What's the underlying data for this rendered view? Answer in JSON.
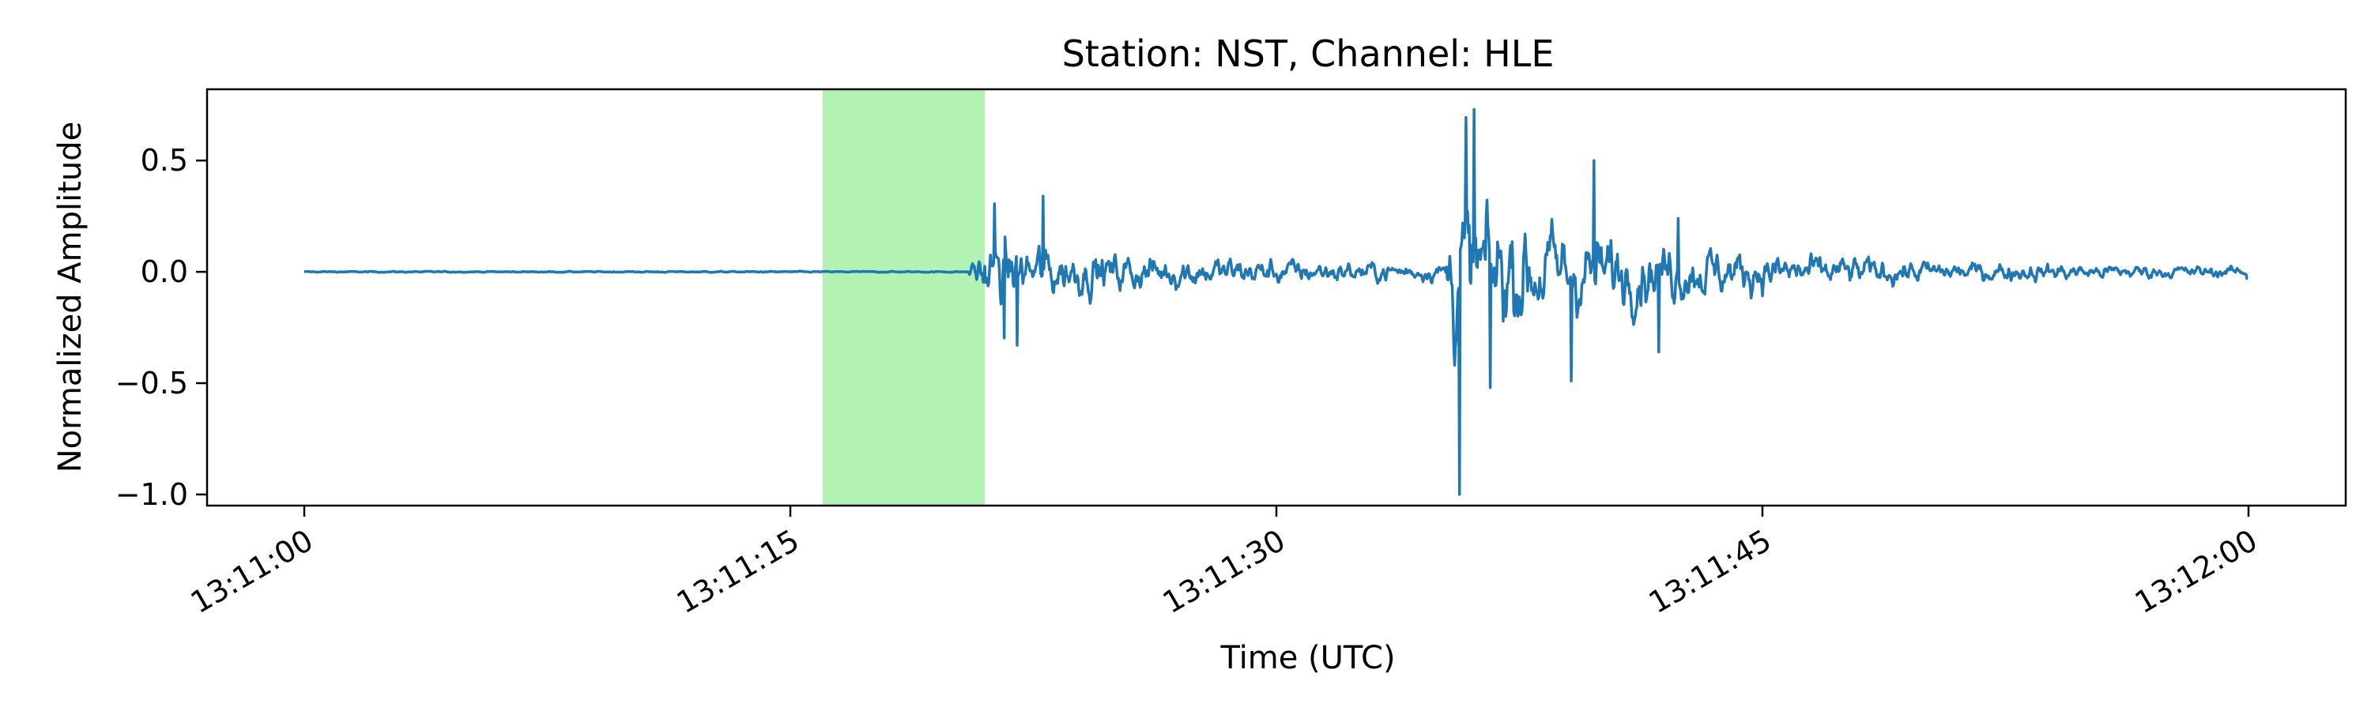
{
  "chart_data": {
    "type": "line",
    "title": "Station: NST, Channel: HLE",
    "xlabel": "Time (UTC)",
    "ylabel": "Normalized Amplitude",
    "xlim": [
      "13:10:57",
      "13:12:03"
    ],
    "ylim": [
      -1.05,
      0.82
    ],
    "x_ticks": [
      "13:11:00",
      "13:11:15",
      "13:11:30",
      "13:11:45",
      "13:12:00"
    ],
    "y_ticks": [
      0.5,
      0.0,
      -0.5,
      -1.0
    ],
    "y_tick_labels": [
      "0.5",
      "0.0",
      "−0.5",
      "−1.0"
    ],
    "grid": false,
    "highlight": {
      "start": "13:11:16",
      "end": "13:11:21",
      "color": "#b2f2b2"
    },
    "series": [
      {
        "color": "#1f77b4",
        "start": "13:11:00",
        "end": "13:12:00",
        "events": [
          {
            "onset": "13:11:20.5",
            "peak": 0.34,
            "trough": -0.33
          },
          {
            "onset": "13:11:35.2",
            "peak": 0.73,
            "trough": -1.0
          }
        ],
        "end_value": -0.03
      }
    ]
  }
}
